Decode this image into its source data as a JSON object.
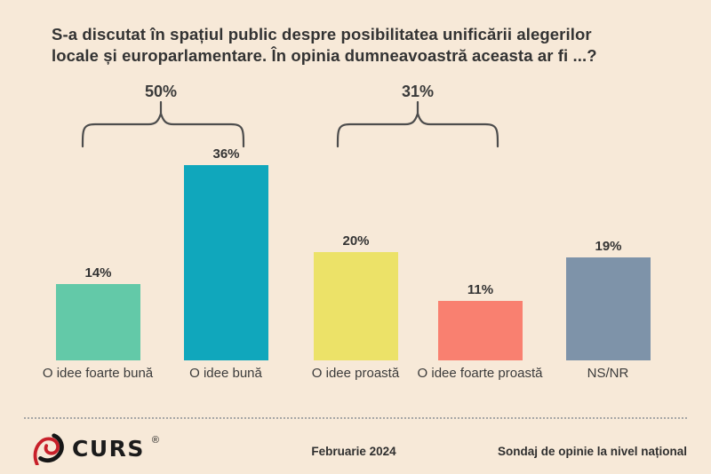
{
  "title": {
    "line1": "S-a discutat în spațiul public despre posibilitatea unificării alegerilor",
    "line2": "locale și europarlamentare. În opinia dumneavoastră aceasta ar fi ...?"
  },
  "chart_data": {
    "type": "bar",
    "categories": [
      "O idee foarte bună",
      "O idee bună",
      "O idee proastă",
      "O idee foarte proastă",
      "NS/NR"
    ],
    "values": [
      14,
      36,
      20,
      11,
      19
    ],
    "value_labels": [
      "14%",
      "36%",
      "20%",
      "11%",
      "19%"
    ],
    "bar_colors": [
      "#63c9a8",
      "#10a7bc",
      "#ece268",
      "#f98070",
      "#7e93a9"
    ],
    "ylim": [
      0,
      40
    ],
    "grid": false,
    "legend": "none",
    "annotations": [
      {
        "label": "50%",
        "span_categories": [
          "O idee foarte bună",
          "O idee bună"
        ]
      },
      {
        "label": "31%",
        "span_categories": [
          "O idee proastă",
          "O idee foarte proastă"
        ]
      }
    ]
  },
  "footer": {
    "logo_text": "CURS",
    "registered_mark": "®",
    "date": "Februarie 2024",
    "note": "Sondaj de opinie la nivel național"
  },
  "colors": {
    "background": "#f7e9d8",
    "title_text": "#333333",
    "bracket": "#4d4d4d",
    "divider": "#a6a6a6",
    "logo_red": "#c8202a",
    "logo_black": "#161616"
  }
}
